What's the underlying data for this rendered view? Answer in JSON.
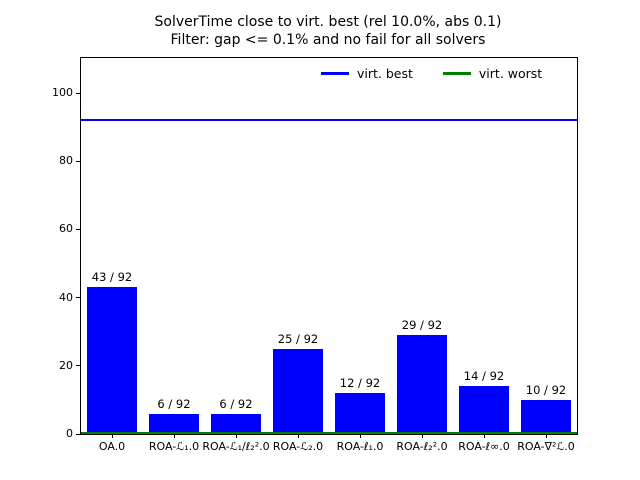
{
  "chart_data": {
    "type": "bar",
    "title": "SolverTime close to virt. best (rel 10.0%, abs 0.1)",
    "subtitle": "Filter: gap <= 0.1% and no fail for all solvers",
    "categories": [
      "OA.0",
      "ROA-ℒ₁.0",
      "ROA-ℒ₁/ℓ₂².0",
      "ROA-ℒ₂.0",
      "ROA-ℓ₁.0",
      "ROA-ℓ₂².0",
      "ROA-ℓ∞.0",
      "ROA-∇²ℒ.0"
    ],
    "values": [
      43,
      6,
      6,
      25,
      12,
      29,
      14,
      10
    ],
    "bar_labels": [
      "43 / 92",
      "6 / 92",
      "6 / 92",
      "25 / 92",
      "12 / 92",
      "29 / 92",
      "14 / 92",
      "10 / 92"
    ],
    "total": 92,
    "bar_color": "#0000ff",
    "xlabel": "",
    "ylabel": "",
    "yticks": [
      0,
      20,
      40,
      60,
      80,
      100
    ],
    "ylim": [
      0,
      110.3
    ],
    "grid": false,
    "legend": {
      "position": "upper-center-inside",
      "entries": [
        {
          "label": "virt. best",
          "color": "#0000ff"
        },
        {
          "label": "virt. worst",
          "color": "#008000"
        }
      ]
    },
    "hlines": [
      {
        "name": "virt. best",
        "value": 92,
        "color": "#0000ff"
      },
      {
        "name": "virt. worst",
        "value": 0,
        "color": "#008000"
      }
    ]
  }
}
